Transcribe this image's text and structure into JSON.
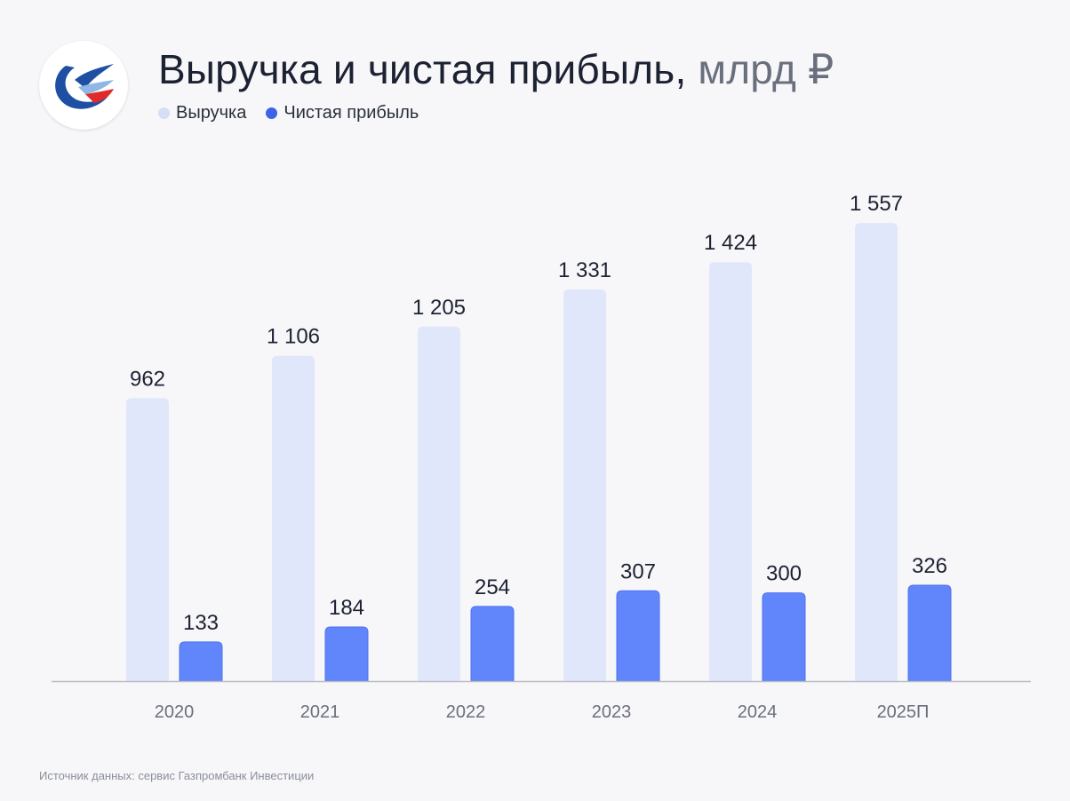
{
  "header": {
    "title": "Выручка и чистая прибыль,",
    "unit": "млрд ₽"
  },
  "legend": [
    {
      "label": "Выручка",
      "color": "#d5ddf7"
    },
    {
      "label": "Чистая прибыль",
      "color": "#3d63e6"
    }
  ],
  "source": "Источник данных: сервис Газпромбанк Инвестиции",
  "chart_data": {
    "type": "bar",
    "title": "Выручка и чистая прибыль, млрд ₽",
    "xlabel": "",
    "ylabel": "",
    "ylim": [
      0,
      1700
    ],
    "grid": false,
    "legend_position": "top-left",
    "categories": [
      "2020",
      "2021",
      "2022",
      "2023",
      "2024",
      "2025П"
    ],
    "series": [
      {
        "name": "Выручка",
        "color": "#e1e7fa",
        "values": [
          962,
          1106,
          1205,
          1331,
          1424,
          1557
        ],
        "labels": [
          "962",
          "1 106",
          "1 205",
          "1 331",
          "1 424",
          "1 557"
        ]
      },
      {
        "name": "Чистая прибыль",
        "color": "#6186fb",
        "values": [
          133,
          184,
          254,
          307,
          300,
          326
        ],
        "labels": [
          "133",
          "184",
          "254",
          "307",
          "300",
          "326"
        ]
      }
    ]
  }
}
